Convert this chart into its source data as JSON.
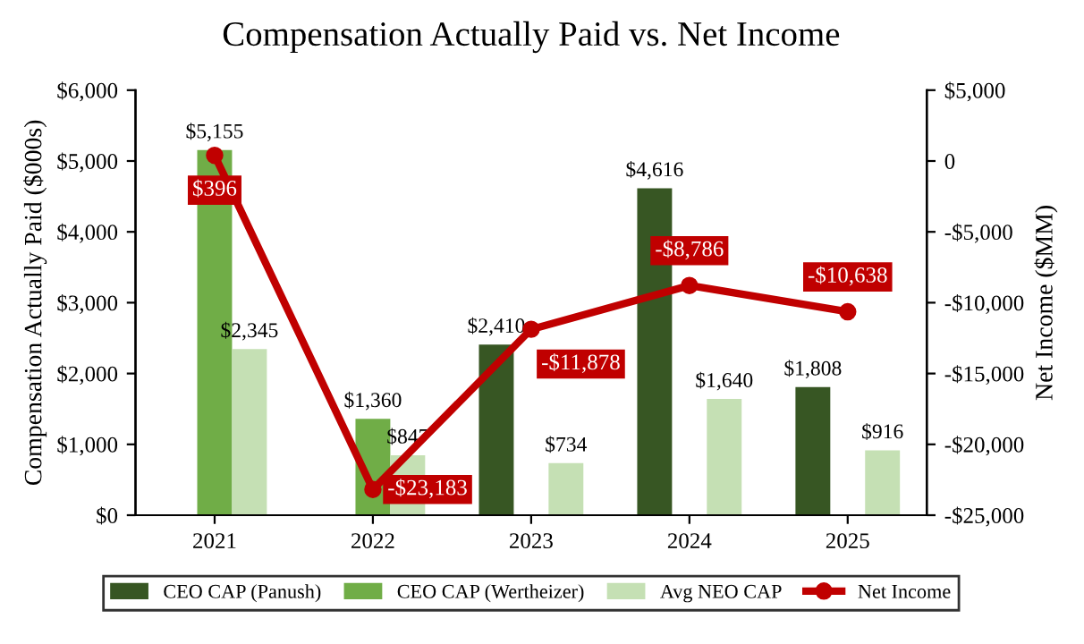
{
  "chart_data": {
    "type": "bar",
    "title": "Compensation Actually Paid vs. Net Income",
    "categories": [
      "2021",
      "2022",
      "2023",
      "2024",
      "2025"
    ],
    "ylabel": "Compensation Actually Paid ($000s)",
    "y2label": "Net Income ($MM)",
    "ylim": [
      0,
      6000
    ],
    "yticks": [
      {
        "value": 0,
        "label": "$0"
      },
      {
        "value": 1000,
        "label": "$1,000"
      },
      {
        "value": 2000,
        "label": "$2,000"
      },
      {
        "value": 3000,
        "label": "$3,000"
      },
      {
        "value": 4000,
        "label": "$4,000"
      },
      {
        "value": 5000,
        "label": "$5,000"
      },
      {
        "value": 6000,
        "label": "$6,000"
      }
    ],
    "y2lim": [
      -25000,
      5000
    ],
    "y2ticks": [
      {
        "value": -25000,
        "label": "-$25,000"
      },
      {
        "value": -20000,
        "label": "-$20,000"
      },
      {
        "value": -15000,
        "label": "-$15,000"
      },
      {
        "value": -10000,
        "label": "-$10,000"
      },
      {
        "value": -5000,
        "label": "-$5,000"
      },
      0,
      {
        "value": 5000,
        "label": "$5,000"
      }
    ],
    "series": [
      {
        "name": "CEO CAP (Panush)",
        "color": "#375623",
        "values": [
          null,
          null,
          2410,
          4616,
          1808
        ],
        "value_labels": [
          null,
          null,
          "$2,410",
          "$4,616",
          "$1,808"
        ]
      },
      {
        "name": "CEO CAP (Wertheizer)",
        "color": "#70ad47",
        "values": [
          5155,
          1360,
          null,
          null,
          null
        ],
        "value_labels": [
          "$5,155",
          "$1,360",
          null,
          null,
          null
        ]
      },
      {
        "name": "Avg NEO CAP",
        "color": "#c5e0b4",
        "values": [
          2345,
          847,
          734,
          1640,
          916
        ],
        "value_labels": [
          "$2,345",
          "$847",
          "$734",
          "$1,640",
          "$916"
        ]
      },
      {
        "name": "Net Income",
        "type": "line",
        "axis": "y2",
        "color": "#c00000",
        "marker": "circle",
        "values": [
          396,
          -23183,
          -11878,
          -8786,
          -10638
        ],
        "value_labels": [
          "$396",
          "-$23,183",
          "-$11,878",
          "-$8,786",
          "-$10,638"
        ]
      }
    ],
    "grid": false,
    "legend": "bottom"
  }
}
